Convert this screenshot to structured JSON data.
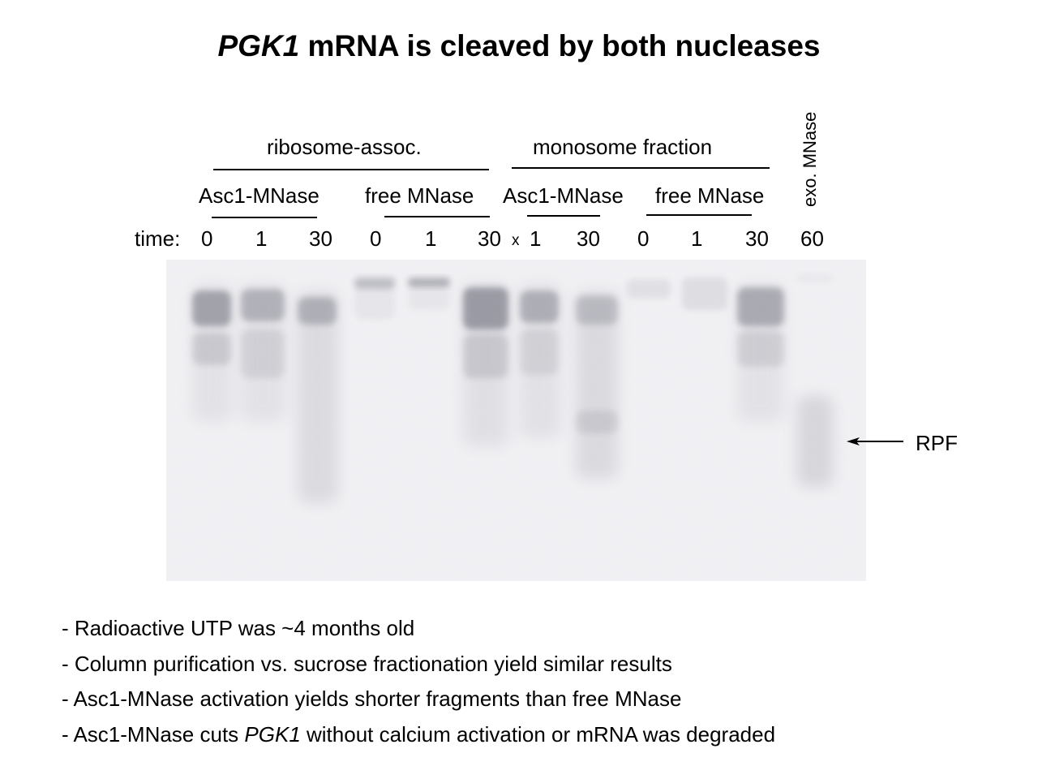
{
  "title": {
    "gene": "PGK1",
    "rest": " mRNA is cleaved by both nucleases"
  },
  "headers": {
    "group1": "ribosome-assoc.",
    "group2": "monosome fraction",
    "sub": [
      "Asc1-MNase",
      "free MNase",
      "Asc1-MNase",
      "free MNase"
    ],
    "exo": "exo. MNase"
  },
  "lanes": {
    "time_label": "time:",
    "values": [
      "0",
      "1",
      "30",
      "0",
      "1",
      "30",
      "1",
      "30",
      "0",
      "1",
      "30",
      "60"
    ],
    "x_mark": "x"
  },
  "gel": {
    "background": "#f2f2f5",
    "band_color": "#6d6d7a"
  },
  "annotation": {
    "label": "RPF",
    "arrow": "left-arrow"
  },
  "notes": [
    {
      "pre": "- Radioactive UTP was ~4 months old",
      "ital": "",
      "post": ""
    },
    {
      "pre": "- Column purification vs. sucrose fractionation yield similar results",
      "ital": "",
      "post": ""
    },
    {
      "pre": "- Asc1-MNase activation yields shorter fragments than free MNase",
      "ital": "",
      "post": ""
    },
    {
      "pre": "- Asc1-MNase cuts ",
      "ital": "PGK1",
      "post": " without calcium activation or mRNA was degraded"
    }
  ]
}
